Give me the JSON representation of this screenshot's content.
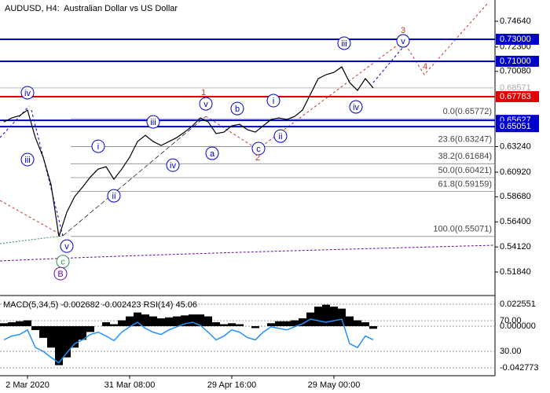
{
  "chart_data": [
    {
      "type": "line",
      "title": "AUDUSD, H4:  Australian Dollar vs US Dollar",
      "categories": [
        null,
        null,
        null,
        "2 Mar 2020",
        null,
        null,
        null,
        null,
        null,
        null,
        null,
        null,
        null,
        null,
        null,
        null,
        "31 Mar 08:00",
        null,
        null,
        null,
        null,
        null,
        null,
        null,
        null,
        null,
        null,
        null,
        null,
        "29 Apr 16:00",
        null,
        null,
        null,
        null,
        null,
        null,
        null,
        null,
        null,
        null,
        null,
        null,
        "29 May 00:00",
        null,
        null,
        null,
        null,
        null,
        null,
        null,
        null,
        null,
        null,
        null,
        null,
        null,
        null,
        null,
        null,
        null,
        null,
        null,
        null
      ],
      "values": [
        0.6549,
        0.6585,
        0.6606,
        0.6656,
        0.6406,
        0.6227,
        0.5977,
        0.5507,
        0.5727,
        0.587,
        0.5955,
        0.6048,
        0.612,
        0.6141,
        0.6027,
        0.612,
        0.6227,
        0.637,
        0.6427,
        0.637,
        0.6334,
        0.637,
        0.6406,
        0.6456,
        0.6513,
        0.6585,
        0.6549,
        0.6442,
        0.6456,
        0.6513,
        0.6527,
        0.6477,
        0.6456,
        0.6513,
        0.657,
        0.6585,
        0.657,
        0.6599,
        0.6656,
        0.6799,
        0.6942,
        0.6978,
        0.6999,
        0.7049,
        0.6906,
        0.6835,
        0.6942,
        0.68571,
        null,
        null,
        null,
        null,
        null,
        null,
        null,
        null,
        null,
        null,
        null,
        null,
        null,
        null,
        null
      ],
      "color": "#000000",
      "ylim": [
        0.4977,
        0.7657
      ],
      "yticks": [
        {
          "value": 0.7464,
          "label": "0.74640"
        },
        {
          "value": 0.723,
          "label": "0.72300"
        },
        {
          "value": 0.7008,
          "label": "0.70080"
        },
        {
          "value": 0.6324,
          "label": "0.63240"
        },
        {
          "value": 0.6092,
          "label": "0.60920"
        },
        {
          "value": 0.5868,
          "label": "0.58680"
        },
        {
          "value": 0.564,
          "label": "0.56400"
        },
        {
          "value": 0.5412,
          "label": "0.54120"
        },
        {
          "value": 0.5184,
          "label": "0.51840"
        }
      ],
      "last_price": {
        "value": 0.68571,
        "label": "0.68571"
      },
      "levels": [
        {
          "value": 0.73,
          "label": "0.73000",
          "color": "#0000cd"
        },
        {
          "value": 0.71,
          "label": "0.71000",
          "color": "#0000cd"
        },
        {
          "value": 0.67783,
          "label": "0.67783",
          "color": "#e00000"
        },
        {
          "value": 0.65627,
          "label": "0.65627",
          "color": "#0000cd"
        },
        {
          "value": 0.65051,
          "label": "0.65051",
          "color": "#0000cd"
        }
      ],
      "fib_levels": [
        {
          "value": 0.65772,
          "label": "0.0(0.65772)"
        },
        {
          "value": 0.63247,
          "label": "23.6(0.63247)"
        },
        {
          "value": 0.61684,
          "label": "38.2(0.61684)"
        },
        {
          "value": 0.60421,
          "label": "50.0(0.60421)"
        },
        {
          "value": 0.59159,
          "label": "61.8(0.59159)"
        },
        {
          "value": 0.55071,
          "label": "100.0(0.55071)"
        }
      ],
      "annotations": [
        {
          "text": "iv",
          "x": 3,
          "y": 0.6814,
          "color": "#0000cd",
          "circled": true
        },
        {
          "text": "iii",
          "x": 3,
          "y": 0.6206,
          "color": "#0000cd",
          "circled": true
        },
        {
          "text": "v",
          "x": 8,
          "y": 0.5419,
          "color": "#0000cd",
          "circled": true
        },
        {
          "text": "c",
          "x": 7.5,
          "y": 0.5279,
          "color": "#2e8b57",
          "circled": true
        },
        {
          "text": "B",
          "x": 7.2,
          "y": 0.5169,
          "color": "#6a0d91",
          "circled": true
        },
        {
          "text": "i",
          "x": 12,
          "y": 0.6327,
          "color": "#0000cd",
          "circled": true
        },
        {
          "text": "ii",
          "x": 14,
          "y": 0.5877,
          "color": "#0000cd",
          "circled": true
        },
        {
          "text": "iii",
          "x": 19,
          "y": 0.6549,
          "color": "#0000cd",
          "circled": true
        },
        {
          "text": "iv",
          "x": 21.5,
          "y": 0.6155,
          "color": "#0000cd",
          "circled": true
        },
        {
          "text": "v",
          "x": 25.7,
          "y": 0.6713,
          "color": "#0000cd",
          "circled": true
        },
        {
          "text": "a",
          "x": 26.5,
          "y": 0.6263,
          "color": "#0000cd",
          "circled": true
        },
        {
          "text": "b",
          "x": 29.7,
          "y": 0.667,
          "color": "#0000cd",
          "circled": true
        },
        {
          "text": "c",
          "x": 32.4,
          "y": 0.6306,
          "color": "#0000cd",
          "circled": true
        },
        {
          "text": "i",
          "x": 34.3,
          "y": 0.6742,
          "color": "#0000cd",
          "circled": true
        },
        {
          "text": "ii",
          "x": 35.2,
          "y": 0.642,
          "color": "#0000cd",
          "circled": true
        },
        {
          "text": "iii",
          "x": 43.3,
          "y": 0.7264,
          "color": "#0000cd",
          "circled": true
        },
        {
          "text": "iv",
          "x": 44.8,
          "y": 0.6685,
          "color": "#0000cd",
          "circled": true
        },
        {
          "text": "v",
          "x": 50.8,
          "y": 0.7285,
          "color": "#0000cd",
          "circled": true
        },
        {
          "text": "1",
          "x": 25.4,
          "y": 0.682,
          "color": "#c0392b",
          "circled": false
        },
        {
          "text": "2",
          "x": 32.3,
          "y": 0.6227,
          "color": "#c0392b",
          "circled": false
        },
        {
          "text": "3",
          "x": 50.8,
          "y": 0.7385,
          "color": "#c0392b",
          "circled": false
        },
        {
          "text": "4",
          "x": 53.6,
          "y": 0.7057,
          "color": "#c0392b",
          "circled": false
        }
      ]
    },
    {
      "type": "bar",
      "title": "MACD(5,34,5) -0.002682 -0.002423 RSI(14) 45.06",
      "values": [
        0.003,
        0.004,
        0.005,
        0.006,
        -0.004,
        -0.012,
        -0.022,
        -0.04,
        -0.032,
        -0.022,
        -0.014,
        -0.006,
        0.0,
        0.004,
        0.002,
        0.006,
        0.01,
        0.014,
        0.012,
        0.01,
        0.008,
        0.009,
        0.01,
        0.011,
        0.012,
        0.012,
        0.01,
        0.004,
        0.002,
        0.003,
        0.002,
        0.0,
        -0.002,
        0.0,
        0.003,
        0.005,
        0.005,
        0.006,
        0.008,
        0.014,
        0.02,
        0.022,
        0.02,
        0.018,
        0.01,
        0.006,
        0.004,
        -0.002682
      ],
      "color": "#000000",
      "ylim": [
        -0.05084,
        0.02981
      ],
      "yticks": [
        0.022551,
        {
          "value": 0,
          "label": "0.000000"
        },
        -0.042773
      ],
      "line": {
        "axis": "y2",
        "color": "#1e90ff",
        "values": [
          45,
          50,
          52,
          58,
          35,
          30,
          22,
          15,
          28,
          40,
          45,
          52,
          55,
          50,
          44,
          55,
          62,
          68,
          60,
          55,
          52,
          58,
          62,
          66,
          68,
          64,
          55,
          45,
          50,
          58,
          55,
          48,
          45,
          55,
          62,
          60,
          58,
          62,
          66,
          72,
          70,
          68,
          70,
          72,
          40,
          35,
          50,
          45.06
        ]
      },
      "y2lim": [
        -1.8,
        100.8
      ],
      "y2ticks": [
        {
          "value": 70,
          "label": "70.00"
        },
        {
          "value": 30,
          "label": "30.00"
        }
      ]
    }
  ]
}
